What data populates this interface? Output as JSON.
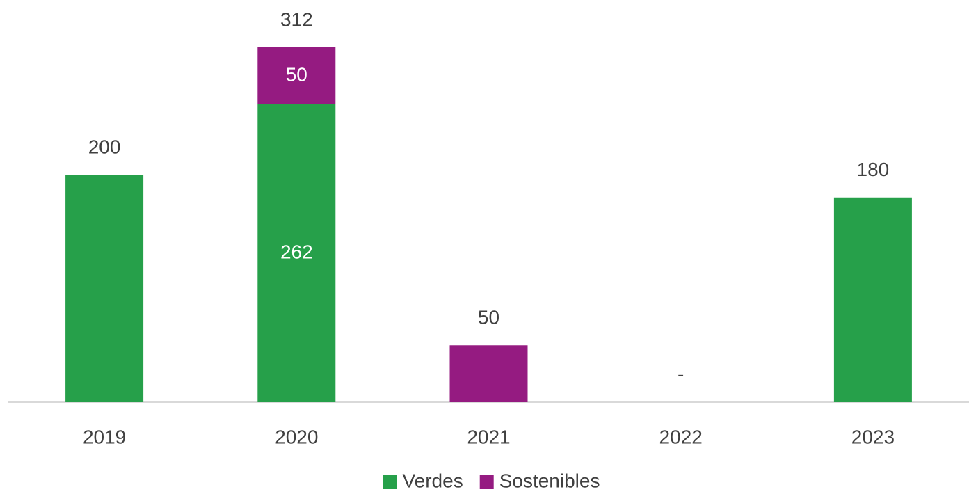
{
  "chart_data": {
    "type": "stacked_bar",
    "categories": [
      "2019",
      "2020",
      "2021",
      "2022",
      "2023"
    ],
    "series": [
      {
        "name": "Verdes",
        "color": "#26a04a",
        "values": [
          200,
          262,
          null,
          null,
          180
        ]
      },
      {
        "name": "Sostenibles",
        "color": "#951b81",
        "values": [
          null,
          50,
          50,
          null,
          null
        ]
      }
    ],
    "totals": {
      "values": [
        200,
        312,
        50,
        0,
        180
      ],
      "value_labels": [
        "200",
        "312",
        "50",
        "-",
        "180"
      ]
    },
    "legend": "bottom"
  }
}
